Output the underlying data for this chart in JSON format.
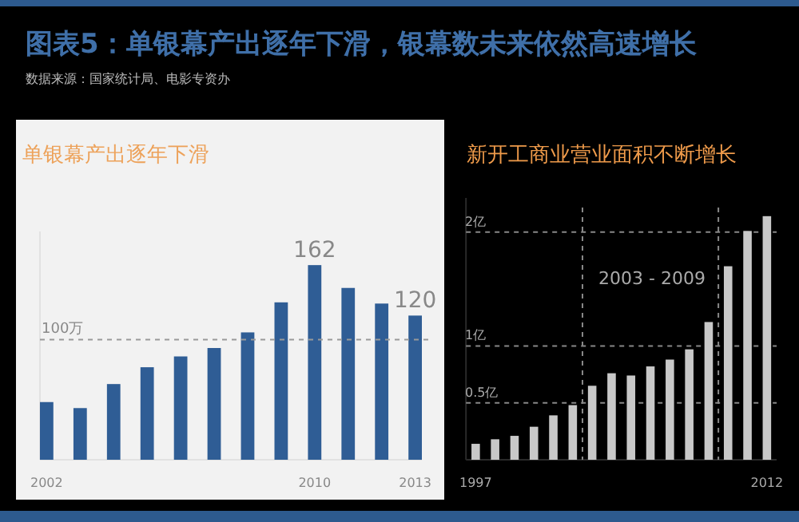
{
  "chart_data": [
    {
      "type": "other",
      "title": "图表5：单银幕产出逐年下滑，银幕数未来依然高速增长",
      "annotations": [
        "数据来源：国家统计局、电影专资办"
      ]
    },
    {
      "type": "bar",
      "title": "单银幕产出逐年下滑",
      "categories": [
        "2002",
        null,
        null,
        null,
        null,
        null,
        null,
        null,
        "2010",
        null,
        null,
        "2013"
      ],
      "values": [
        48,
        43,
        63,
        77,
        86,
        93,
        106,
        131,
        162,
        143,
        130,
        120
      ],
      "color": "#2f5d95",
      "value_labels": [
        null,
        null,
        null,
        null,
        null,
        null,
        null,
        null,
        "162",
        null,
        null,
        "120"
      ],
      "ylim": [
        0,
        190
      ],
      "tick_labels": "x",
      "ref_lines": [
        {
          "axis": "y",
          "value": 100,
          "label": "100万",
          "line_style": "dashed"
        }
      ]
    },
    {
      "type": "bar",
      "title": "新开工商业营业面积不断增长",
      "x": [
        1997,
        1998,
        1999,
        2000,
        2001,
        2002,
        2003,
        2004,
        2005,
        2006,
        2007,
        2008,
        2009,
        2010,
        2011,
        2012
      ],
      "xlim": [
        1996.5,
        2012.5
      ],
      "xticks": [
        1997,
        2012
      ],
      "values": [
        0.14,
        0.18,
        0.21,
        0.29,
        0.39,
        0.48,
        0.65,
        0.76,
        0.74,
        0.82,
        0.88,
        0.97,
        1.21,
        1.7,
        2.01,
        2.14
      ],
      "color": "#c8c8c8",
      "ylim": [
        0,
        2.3
      ],
      "yticks": [
        {
          "value": 0.5,
          "label": "0.5亿"
        },
        {
          "value": 1,
          "label": "1亿"
        },
        {
          "value": 2,
          "label": "2亿"
        }
      ],
      "grid": "y",
      "ref_lines": [
        {
          "axis": "x",
          "value": 2002.5,
          "line_style": "dashed"
        },
        {
          "axis": "x",
          "value": 2009.5,
          "line_style": "dashed"
        }
      ],
      "annotations": [
        "2003 - 2009"
      ]
    }
  ]
}
